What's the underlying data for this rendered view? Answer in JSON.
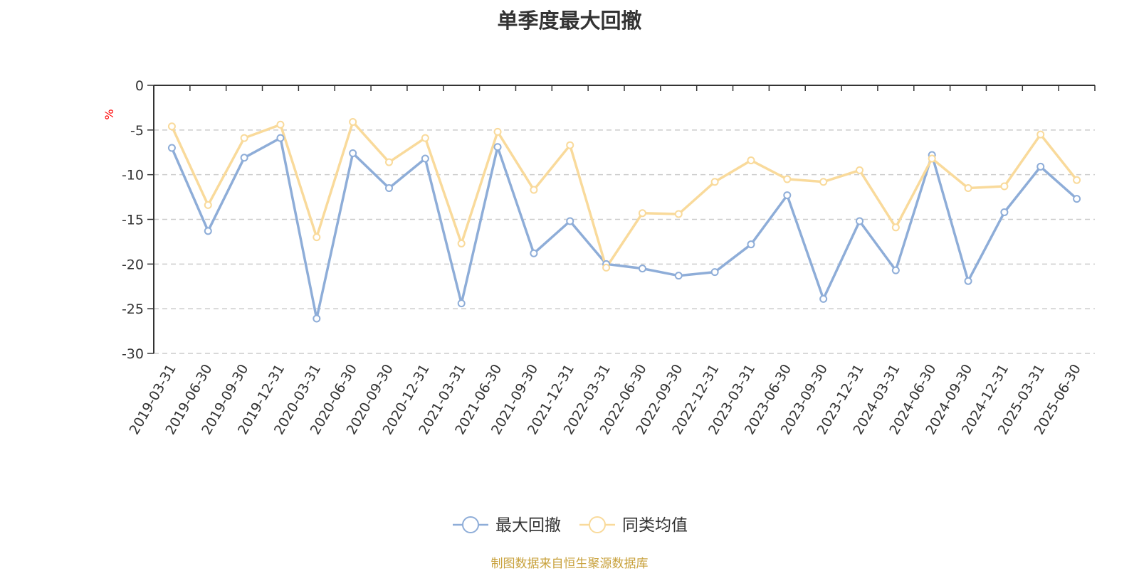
{
  "title": "单季度最大回撤",
  "source": "制图数据来自恒生聚源数据库",
  "chart_data": {
    "type": "line",
    "title": "单季度最大回撤",
    "ylabel": "%",
    "ylim": [
      -30,
      0
    ],
    "yticks": [
      0,
      -5,
      -10,
      -15,
      -20,
      -25,
      -30
    ],
    "grid": true,
    "legend_position": "bottom-center",
    "categories": [
      "2019-03-31",
      "2019-06-30",
      "2019-09-30",
      "2019-12-31",
      "2020-03-31",
      "2020-06-30",
      "2020-09-30",
      "2020-12-31",
      "2021-03-31",
      "2021-06-30",
      "2021-09-30",
      "2021-12-31",
      "2022-03-31",
      "2022-06-30",
      "2022-09-30",
      "2022-12-31",
      "2023-03-31",
      "2023-06-30",
      "2023-09-30",
      "2023-12-31",
      "2024-03-31",
      "2024-06-30",
      "2024-09-30",
      "2024-12-31",
      "2025-03-31",
      "2025-06-30"
    ],
    "series": [
      {
        "name": "最大回撤",
        "color": "#8eadd8",
        "values": [
          -7.0,
          -16.3,
          -8.1,
          -5.9,
          -26.1,
          -7.6,
          -11.5,
          -8.2,
          -24.4,
          -6.9,
          -18.8,
          -15.2,
          -20.0,
          -20.5,
          -21.3,
          -20.9,
          -17.8,
          -12.3,
          -23.9,
          -15.2,
          -20.7,
          -7.8,
          -21.9,
          -14.2,
          -9.1,
          -12.7
        ]
      },
      {
        "name": "同类均值",
        "color": "#f9da9b",
        "values": [
          -4.6,
          -13.4,
          -5.9,
          -4.4,
          -17.0,
          -4.1,
          -8.6,
          -5.9,
          -17.7,
          -5.2,
          -11.7,
          -6.7,
          -20.4,
          -14.3,
          -14.4,
          -10.8,
          -8.4,
          -10.5,
          -10.8,
          -9.5,
          -15.9,
          -8.2,
          -11.5,
          -11.3,
          -5.5,
          -10.6
        ]
      }
    ]
  }
}
